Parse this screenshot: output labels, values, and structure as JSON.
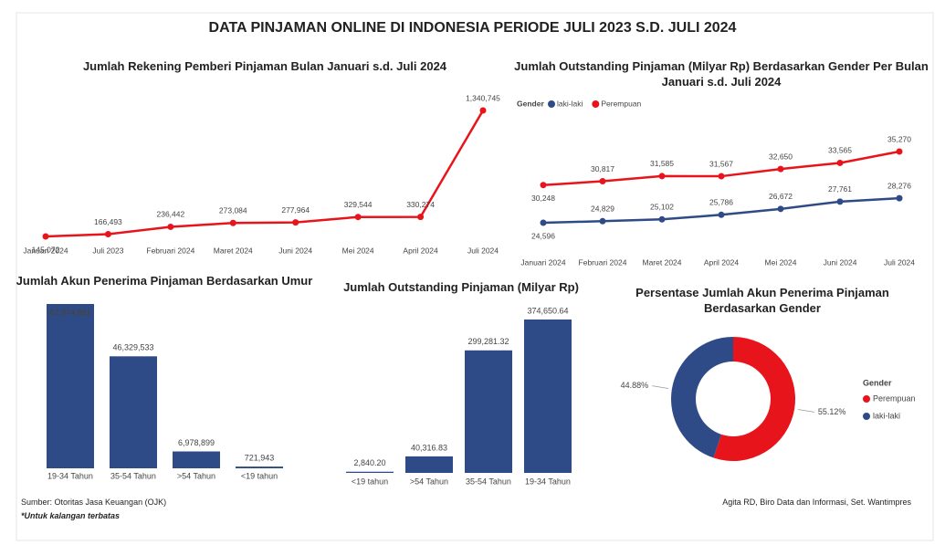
{
  "title": "DATA PINJAMAN ONLINE DI INDONESIA PERIODE JULI 2023 S.D. JULI 2024",
  "source": "Sumber: Otoritas Jasa Keuangan (OJK)",
  "note": "*Untuk kalangan terbatas",
  "credit": "Agita RD, Biro Data dan Informasi, Set. Wantimpres",
  "chart_data": [
    {
      "type": "line",
      "title": "Jumlah Rekening Pemberi Pinjaman Bulan Januari s.d. Juli 2024",
      "categories": [
        "Januari 2024",
        "Juli 2023",
        "Februari 2024",
        "Maret 2024",
        "Juni 2024",
        "Mei 2024",
        "April 2024",
        "Juli 2024"
      ],
      "values": [
        145072,
        166493,
        236442,
        273084,
        277964,
        329544,
        330274,
        1340745
      ],
      "value_labels": [
        "145,072",
        "166,493",
        "236,442",
        "273,084",
        "277,964",
        "329,544",
        "330,274",
        "1,340,745"
      ],
      "color": "#e8141b"
    },
    {
      "type": "line",
      "title": "Jumlah Outstanding Pinjaman (Milyar Rp) Berdasarkan Gender Per Bulan Januari s.d. Juli 2024",
      "legend_title": "Gender",
      "categories": [
        "Januari 2024",
        "Februari 2024",
        "Maret 2024",
        "April 2024",
        "Mei 2024",
        "Juni 2024",
        "Juli 2024"
      ],
      "series": [
        {
          "name": "laki-laki",
          "color": "#2f4b87",
          "values": [
            24596,
            24829,
            25102,
            25786,
            26672,
            27761,
            28276
          ],
          "value_labels": [
            "24,596",
            "24,829",
            "25,102",
            "25,786",
            "26,672",
            "27,761",
            "28,276"
          ]
        },
        {
          "name": "Perempuan",
          "color": "#e8141b",
          "values": [
            30248,
            30817,
            31585,
            31567,
            32650,
            33565,
            35270
          ],
          "value_labels": [
            "30,248",
            "30,817",
            "31,585",
            "31,567",
            "32,650",
            "33,565",
            "35,270"
          ]
        }
      ]
    },
    {
      "type": "bar",
      "title": "Jumlah Akun Penerima Pinjaman Berdasarkan Umur",
      "categories": [
        "19-34 Tahun",
        "35-54 Tahun",
        ">54 Tahun",
        "<19 tahun"
      ],
      "values": [
        67974891,
        46329533,
        6978899,
        721943
      ],
      "value_labels": [
        "67,974,891",
        "46,329,533",
        "6,978,899",
        "721,943"
      ],
      "color": "#2f4b87"
    },
    {
      "type": "bar",
      "title": "Jumlah Outstanding Pinjaman (Milyar Rp)",
      "categories": [
        "<19 tahun",
        ">54 Tahun",
        "35-54 Tahun",
        "19-34 Tahun"
      ],
      "values": [
        2840.2,
        40316.83,
        299281.32,
        374650.64
      ],
      "value_labels": [
        "2,840.20",
        "40,316.83",
        "299,281.32",
        "374,650.64"
      ],
      "color": "#2f4b87"
    },
    {
      "type": "pie",
      "title": "Persentase Jumlah Akun Penerima Pinjaman Berdasarkan Gender",
      "legend_title": "Gender",
      "categories": [
        "Perempuan",
        "laki-laki"
      ],
      "values": [
        55.12,
        44.88
      ],
      "value_labels": [
        "55.12%",
        "44.88%"
      ],
      "colors": [
        "#e8141b",
        "#2f4b87"
      ]
    }
  ]
}
